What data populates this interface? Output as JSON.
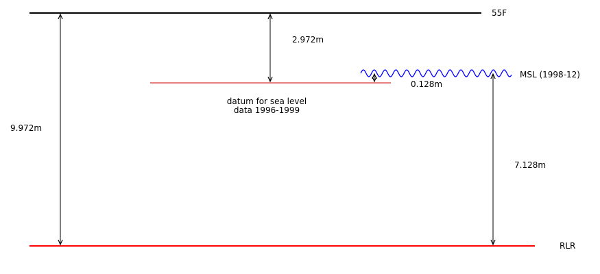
{
  "diagram": {
    "levels": {
      "top": {
        "label": "55F",
        "color": "#000000"
      },
      "msl": {
        "label": "MSL (1998-12)",
        "color": "#0000ff"
      },
      "datum": {
        "label_line1": "datum for sea level",
        "label_line2": "data 1996-1999",
        "color": "#cc0000"
      },
      "rlr": {
        "label": "RLR",
        "color": "#ff0000"
      }
    },
    "measurements": {
      "top_to_datum": "2.972m",
      "top_to_rlr": "9.972m",
      "datum_to_msl": "0.128m",
      "msl_to_rlr": "7.128m"
    }
  }
}
